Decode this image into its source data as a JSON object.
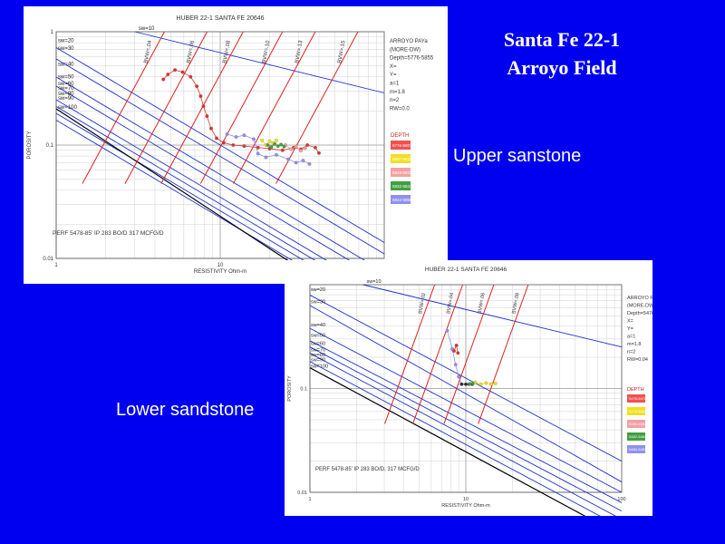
{
  "slide": {
    "title_line1": "Santa Fe 22-1",
    "title_line2": "Arroyo Field",
    "upper_caption": "Upper sanstone",
    "lower_caption": "Lower sandstone"
  },
  "chart_data": [
    {
      "type": "scatter",
      "title": "HUBER 22-1 SANTA FE 20646",
      "xlabel": "RESISTIVITY Ohm-m",
      "ylabel": "POROSITY",
      "xscale": "log",
      "yscale": "log",
      "xlim": [
        1,
        100
      ],
      "ylim": [
        0.01,
        1
      ],
      "x_ticks": [
        "1",
        "10"
      ],
      "y_ticks": [
        "1",
        "0.1",
        "0.01"
      ],
      "sw_labels": [
        "sw=20",
        "sw=30",
        "sw=40",
        "sw=50",
        "sw=60",
        "sw=70",
        "sw=80",
        "sw=90",
        "sw=100"
      ],
      "sw_top": "sw=10",
      "bvw_labels": [
        "BVW=.04",
        "BVW=.06",
        "BVW=.08",
        "BVW=.10",
        "BVW=.13",
        "BVW=.15"
      ],
      "info": [
        "ARROYO PAYa",
        "(MORE-DW)",
        "Depth=5776-5855",
        "X=",
        "Y=",
        "a=1",
        "m=1.8",
        "n=2",
        "RW=0.0"
      ],
      "legend_title": "DEPTH",
      "legend_entries": [
        "5776-5807",
        "5807-5819",
        "5819-5832",
        "5832-5841",
        "5842-5855"
      ],
      "legend_colors": [
        "#f05050",
        "#f0e020",
        "#f4a0a0",
        "#40a040",
        "#9090f0"
      ],
      "note": "PERF 5478-85' IP 283 BO/D 317 MCFG/D",
      "series": [
        {
          "color": "#e03030",
          "points": [
            [
              4.5,
              0.38
            ],
            [
              4.8,
              0.42
            ],
            [
              5.3,
              0.46
            ],
            [
              5.9,
              0.44
            ],
            [
              6.6,
              0.4
            ],
            [
              7.2,
              0.33
            ],
            [
              7.6,
              0.27
            ],
            [
              7.9,
              0.22
            ],
            [
              8.3,
              0.18
            ],
            [
              8.8,
              0.14
            ],
            [
              9.5,
              0.115
            ],
            [
              10.5,
              0.105
            ],
            [
              12,
              0.1
            ],
            [
              14,
              0.098
            ],
            [
              17,
              0.095
            ],
            [
              20,
              0.093
            ],
            [
              24,
              0.09
            ],
            [
              28,
              0.095
            ],
            [
              31,
              0.092
            ],
            [
              34,
              0.1
            ],
            [
              38,
              0.095
            ],
            [
              40,
              0.085
            ]
          ]
        },
        {
          "color": "#f0e020",
          "points": [
            [
              18,
              0.11
            ],
            [
              19,
              0.1
            ],
            [
              20,
              0.108
            ],
            [
              21,
              0.104
            ],
            [
              22,
              0.11
            ]
          ]
        },
        {
          "color": "#f4a0a0",
          "points": [
            [
              25,
              0.1
            ],
            [
              27,
              0.092
            ],
            [
              29,
              0.097
            ],
            [
              31,
              0.089
            ],
            [
              33,
              0.094
            ]
          ]
        },
        {
          "color": "#40a040",
          "points": [
            [
              19.5,
              0.1
            ],
            [
              20.5,
              0.096
            ],
            [
              21.5,
              0.102
            ],
            [
              22.5,
              0.098
            ],
            [
              23.5,
              0.101
            ],
            [
              24.5,
              0.097
            ]
          ]
        },
        {
          "color": "#9090f0",
          "points": [
            [
              11,
              0.125
            ],
            [
              12.5,
              0.118
            ],
            [
              14,
              0.122
            ],
            [
              16,
              0.113
            ],
            [
              17,
              0.084
            ],
            [
              19,
              0.078
            ],
            [
              22,
              0.082
            ],
            [
              26,
              0.075
            ],
            [
              29,
              0.07
            ],
            [
              32,
              0.073
            ],
            [
              35,
              0.068
            ]
          ]
        }
      ]
    },
    {
      "type": "scatter",
      "title": "HUBER 22-1 SANTA FE 20646",
      "xlabel": "RESISTIVITY Ohm-m",
      "ylabel": "POROSITY",
      "xscale": "log",
      "yscale": "log",
      "xlim": [
        1,
        100
      ],
      "ylim": [
        0.01,
        1
      ],
      "x_ticks": [
        "1",
        "10",
        "100"
      ],
      "y_ticks": [
        "0.1",
        "0.01"
      ],
      "sw_labels": [
        "sw=20",
        "sw=30",
        "sw=40",
        "sw=50",
        "sw=60",
        "sw=70",
        "sw=80",
        "sw=90",
        "sw=100"
      ],
      "sw_top": "sw=10",
      "bvw_labels": [
        "BVW=.02",
        "BVW=.04",
        "BVW=.06",
        "BVW=.08"
      ],
      "info": [
        "ARROYO PAY",
        "(MORE-DW)",
        "Depth=5476-5487",
        "X=",
        "Y=",
        "a=1",
        "m=1.8",
        "n=2",
        "RW=0.04"
      ],
      "legend_title": "DEPTH",
      "legend_entries": [
        "5476-5478",
        "5478-5480",
        "5480-5482",
        "5482-5484",
        "5484-5487"
      ],
      "legend_colors": [
        "#f05050",
        "#f0e020",
        "#f4a0a0",
        "#40a040",
        "#9090f0"
      ],
      "note": "PERF 5478-85' IP 283 BO/D, 317 MCFG/D",
      "series": [
        {
          "color": "#9090f0",
          "points": [
            [
              7.6,
              0.36
            ],
            [
              8.2,
              0.24
            ],
            [
              8.6,
              0.17
            ],
            [
              9.0,
              0.13
            ],
            [
              9.4,
              0.11
            ]
          ]
        },
        {
          "color": "#e03030",
          "points": [
            [
              8.4,
              0.23
            ],
            [
              8.7,
              0.26
            ],
            [
              8.9,
              0.22
            ]
          ]
        },
        {
          "color": "#303030",
          "points": [
            [
              9.4,
              0.11
            ],
            [
              10,
              0.11
            ],
            [
              10.5,
              0.11
            ],
            [
              11,
              0.11
            ]
          ]
        },
        {
          "color": "#f0e020",
          "points": [
            [
              11.5,
              0.115
            ],
            [
              12.5,
              0.11
            ],
            [
              13.5,
              0.113
            ],
            [
              14.5,
              0.11
            ],
            [
              15.5,
              0.112
            ]
          ]
        },
        {
          "color": "#40a040",
          "points": [
            [
              10.6,
              0.111
            ],
            [
              11.1,
              0.112
            ]
          ]
        }
      ]
    }
  ]
}
